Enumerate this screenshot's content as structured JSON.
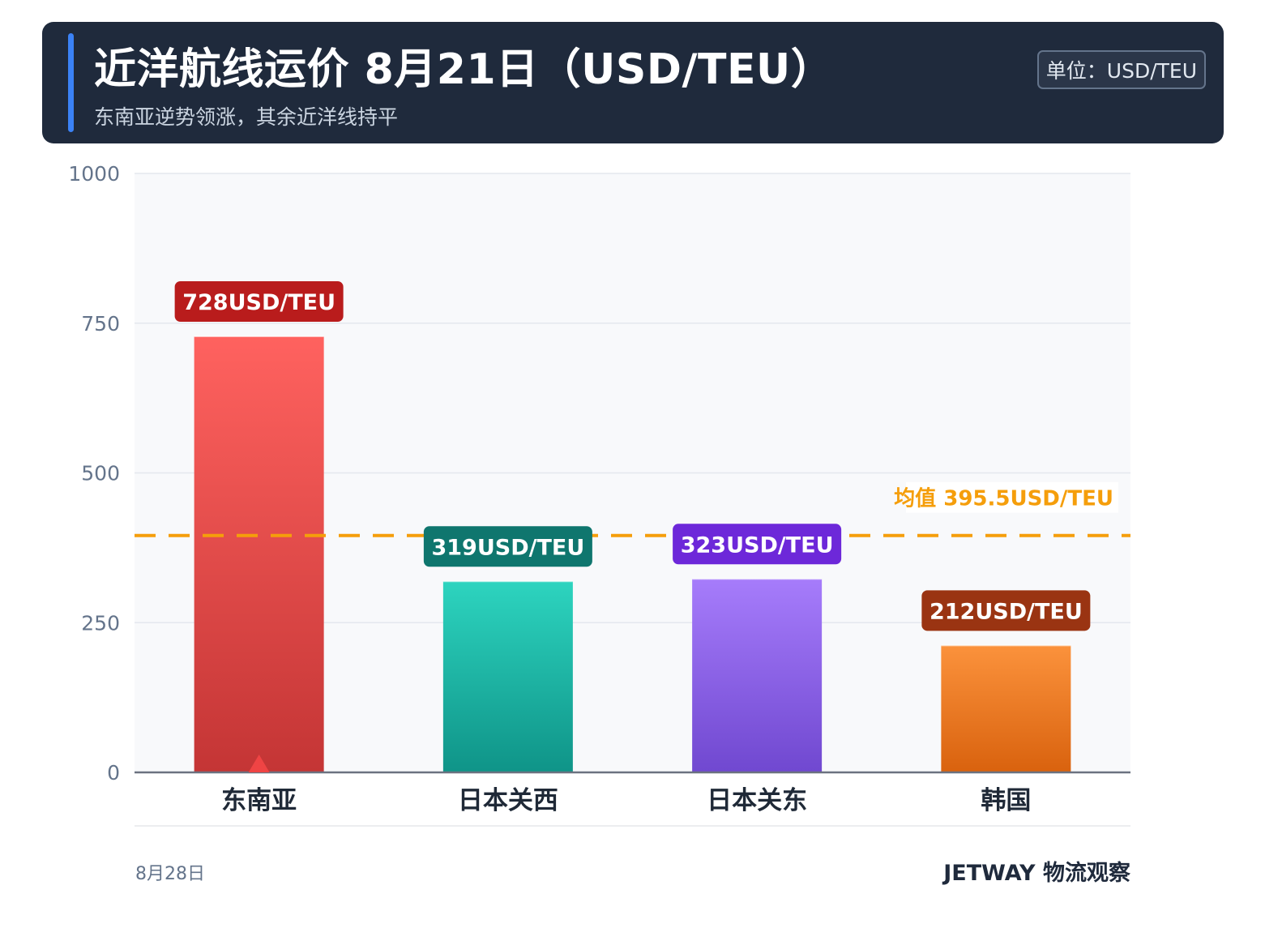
{
  "header": {
    "title": "近洋航线运价 8月21日（USD/TEU）",
    "subtitle": "东南亚逆势领涨，其余近洋线持平",
    "unit_badge": "单位：USD/TEU"
  },
  "chart_data": {
    "type": "bar",
    "categories": [
      "东南亚",
      "日本关西",
      "日本关东",
      "韩国"
    ],
    "values": [
      728,
      319,
      323,
      212
    ],
    "data_labels": [
      "728USD/TEU",
      "319USD/TEU",
      "323USD/TEU",
      "212USD/TEU"
    ],
    "ylim": [
      0,
      1000
    ],
    "yticks": [
      0,
      250,
      500,
      750,
      1000
    ],
    "ytick_labels": [
      "0",
      "250",
      "500",
      "750",
      "1000"
    ],
    "grid": true,
    "reference_line": {
      "value": 395.5,
      "label": "均值 395.5USD/TEU",
      "color": "#f59e0b"
    },
    "highlight_marker": {
      "category": "东南亚",
      "meaning": "up"
    },
    "colors": {
      "bars": [
        [
          "#ff625f",
          "#c43535"
        ],
        [
          "#2dd4bf",
          "#0f9488"
        ],
        [
          "#a67cfb",
          "#7048d0"
        ],
        [
          "#fb923c",
          "#d9620e"
        ]
      ],
      "labels": [
        "#b91c1c",
        "#0f766e",
        "#6d28d9",
        "#9a3412"
      ],
      "marker": "#ef4444"
    }
  },
  "footer": {
    "date": "8月28日",
    "brand": "JETWAY 物流观察"
  }
}
